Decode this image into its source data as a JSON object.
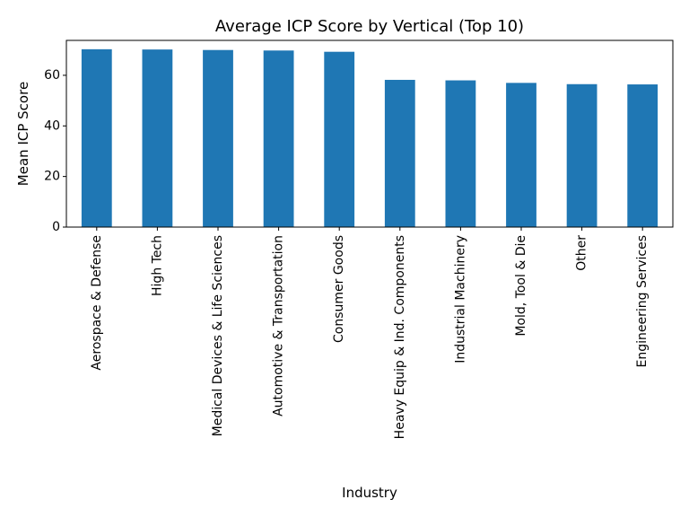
{
  "chart_data": {
    "type": "bar",
    "title": "Average ICP Score by Vertical (Top 10)",
    "xlabel": "Industry",
    "ylabel": "Mean ICP Score",
    "categories": [
      "Aerospace & Defense",
      "High Tech",
      "Medical Devices & Life Sciences",
      "Automotive & Transportation",
      "Consumer Goods",
      "Heavy Equip & Ind. Components",
      "Industrial Machinery",
      "Mold, Tool & Die",
      "Other",
      "Engineering Services"
    ],
    "values": [
      70.3,
      70.2,
      70.0,
      69.8,
      69.3,
      58.2,
      58.0,
      57.0,
      56.5,
      56.4
    ],
    "ylim": [
      0,
      73.8
    ],
    "yticks": [
      0,
      20,
      40,
      60
    ],
    "grid": false,
    "bar_color": "#1f77b4"
  }
}
